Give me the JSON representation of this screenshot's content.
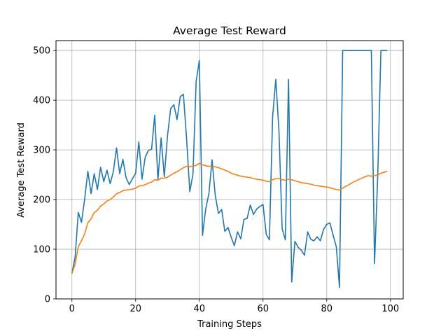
{
  "chart_data": {
    "type": "line",
    "title": "Average Test Reward",
    "xlabel": "Training Steps",
    "ylabel": "Average Test Reward",
    "xlim": [
      -5,
      104
    ],
    "ylim": [
      0,
      520
    ],
    "xticks": [
      0,
      20,
      40,
      60,
      80,
      100
    ],
    "yticks": [
      0,
      100,
      200,
      300,
      400,
      500
    ],
    "grid": true,
    "legend": "none",
    "series": [
      {
        "color": "#1f77b4",
        "x": [
          0,
          1,
          2,
          3,
          4,
          5,
          6,
          7,
          8,
          9,
          10,
          11,
          12,
          13,
          14,
          15,
          16,
          17,
          18,
          19,
          20,
          21,
          22,
          23,
          24,
          25,
          26,
          27,
          28,
          29,
          30,
          31,
          32,
          33,
          34,
          35,
          36,
          37,
          38,
          39,
          40,
          41,
          42,
          43,
          44,
          45,
          46,
          47,
          48,
          49,
          50,
          51,
          52,
          53,
          54,
          55,
          56,
          57,
          58,
          59,
          60,
          61,
          62,
          63,
          64,
          65,
          66,
          67,
          68,
          69,
          70,
          71,
          72,
          73,
          74,
          75,
          76,
          77,
          78,
          79,
          80,
          81,
          82,
          83,
          84,
          85,
          86,
          87,
          88,
          89,
          90,
          91,
          92,
          93,
          94,
          95,
          96,
          97,
          98,
          99
        ],
        "values": [
          51,
          84,
          174,
          154,
          201,
          257,
          212,
          252,
          220,
          265,
          236,
          259,
          232,
          256,
          304,
          252,
          281,
          244,
          230,
          242,
          253,
          316,
          241,
          285,
          299,
          301,
          370,
          240,
          324,
          246,
          328,
          383,
          391,
          361,
          407,
          412,
          322,
          216,
          251,
          438,
          480,
          128,
          181,
          212,
          280,
          208,
          172,
          180,
          136,
          144,
          124,
          107,
          135,
          121,
          160,
          162,
          189,
          170,
          181,
          186,
          190,
          130,
          119,
          366,
          442,
          338,
          141,
          119,
          442,
          34,
          116,
          104,
          98,
          88,
          135,
          120,
          117,
          125,
          117,
          140,
          150,
          153,
          128,
          105,
          23,
          500,
          500,
          500,
          500,
          500,
          500,
          500,
          500,
          500,
          500,
          71,
          247,
          500,
          500,
          500
        ]
      },
      {
        "color": "#ff7f0e",
        "x": [
          0,
          1,
          2,
          3,
          4,
          5,
          6,
          7,
          8,
          9,
          10,
          11,
          12,
          13,
          14,
          15,
          16,
          17,
          18,
          19,
          20,
          21,
          22,
          23,
          24,
          25,
          26,
          27,
          28,
          29,
          30,
          31,
          32,
          33,
          34,
          35,
          36,
          37,
          38,
          39,
          40,
          41,
          42,
          43,
          44,
          45,
          46,
          47,
          48,
          49,
          50,
          51,
          52,
          53,
          54,
          55,
          56,
          57,
          58,
          59,
          60,
          61,
          62,
          63,
          64,
          65,
          66,
          67,
          68,
          69,
          70,
          71,
          72,
          73,
          74,
          75,
          76,
          77,
          78,
          79,
          80,
          81,
          82,
          83,
          84,
          85,
          86,
          87,
          88,
          89,
          90,
          91,
          92,
          93,
          94,
          95,
          96,
          97,
          98,
          99
        ],
        "values": [
          51,
          70,
          105,
          117,
          131,
          153,
          161,
          174,
          178,
          187,
          191,
          197,
          200,
          205,
          212,
          214,
          218,
          219,
          220,
          221,
          223,
          227,
          228,
          230,
          233,
          235,
          240,
          239,
          243,
          243,
          245,
          249,
          253,
          256,
          260,
          264,
          267,
          266,
          267,
          269,
          273,
          270,
          268,
          267,
          267,
          266,
          264,
          262,
          259,
          257,
          253,
          251,
          249,
          247,
          246,
          245,
          244,
          242,
          241,
          240,
          239,
          237,
          236,
          240,
          242,
          242,
          240,
          239,
          241,
          240,
          238,
          236,
          234,
          233,
          232,
          231,
          229,
          228,
          227,
          226,
          225,
          224,
          222,
          220,
          219,
          223,
          227,
          230,
          234,
          237,
          240,
          243,
          246,
          248,
          247,
          248,
          250,
          253,
          255,
          257
        ]
      }
    ]
  }
}
